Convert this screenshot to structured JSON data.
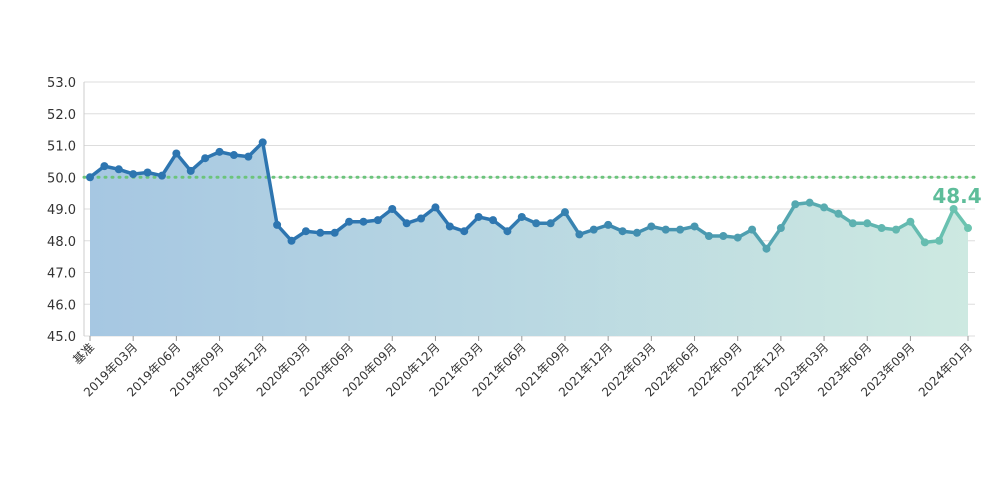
{
  "chart_data": {
    "type": "line",
    "title": "",
    "xlabel": "",
    "ylabel": "",
    "ylim": [
      45.0,
      53.0
    ],
    "y_ticks": [
      "45.0",
      "46.0",
      "47.0",
      "48.0",
      "49.0",
      "50.0",
      "51.0",
      "52.0",
      "53.0"
    ],
    "reference_line": {
      "value": 50.0,
      "style": "dotted",
      "color": "#6cc47c"
    },
    "x_tick_labels": [
      "基准",
      "2019年03月",
      "2019年06月",
      "2019年09月",
      "2019年12月",
      "2020年03月",
      "2020年06月",
      "2020年09月",
      "2020年12月",
      "2021年03月",
      "2021年06月",
      "2021年09月",
      "2021年12月",
      "2022年03月",
      "2022年06月",
      "2022年09月",
      "2022年12月",
      "2023年03月",
      "2023年06月",
      "2023年09月",
      "2024年01月"
    ],
    "tick_points": [
      0,
      3,
      6,
      9,
      12,
      15,
      18,
      21,
      24,
      27,
      30,
      33,
      36,
      39,
      42,
      45,
      48,
      51,
      54,
      57,
      61
    ],
    "series": [
      {
        "values": [
          50.0,
          50.35,
          50.25,
          50.1,
          50.15,
          50.05,
          50.75,
          50.2,
          50.6,
          50.8,
          50.7,
          50.65,
          51.1,
          48.5,
          48.0,
          48.3,
          48.25,
          48.25,
          48.6,
          48.6,
          48.65,
          49.0,
          48.55,
          48.7,
          49.05,
          48.45,
          48.3,
          48.75,
          48.65,
          48.3,
          48.75,
          48.55,
          48.55,
          48.9,
          48.2,
          48.35,
          48.5,
          48.3,
          48.25,
          48.45,
          48.35,
          48.35,
          48.45,
          48.15,
          48.15,
          48.1,
          48.35,
          47.75,
          48.4,
          49.15,
          49.2,
          49.05,
          48.85,
          48.55,
          48.55,
          48.4,
          48.35,
          48.6,
          47.95,
          48.0,
          49.0,
          48.4
        ]
      }
    ],
    "last_value_label": "48.4",
    "colors": {
      "line_start": "#2d75b0",
      "line_end": "#6cc4b0",
      "fill_start": "#a6c7e2",
      "fill_end": "#cde9e1",
      "label": "#5ebd9a"
    }
  }
}
